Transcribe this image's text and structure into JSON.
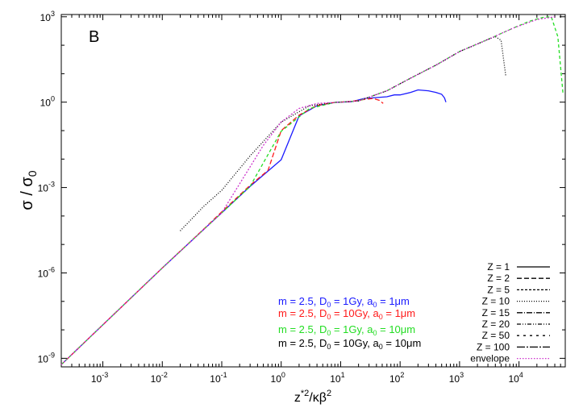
{
  "chart_data": {
    "type": "line",
    "panel_label": "B",
    "xlabel": {
      "base": "z",
      "sup": "*2",
      "tail": "/κβ",
      "tail_sup": "2"
    },
    "ylabel": {
      "sigma": "σ",
      "slash": " / ",
      "sigma0": "σ",
      "sub": "0"
    },
    "x_scale": "log",
    "y_scale": "log",
    "xlim": [
      0.0002,
      60000
    ],
    "ylim": [
      5e-10,
      1200
    ],
    "x_ticks": [
      {
        "base": "10",
        "exp": "-3",
        "value": 0.001
      },
      {
        "base": "10",
        "exp": "-2",
        "value": 0.01
      },
      {
        "base": "10",
        "exp": "-1",
        "value": 0.1
      },
      {
        "base": "10",
        "exp": "0",
        "value": 1
      },
      {
        "base": "10",
        "exp": "1",
        "value": 10
      },
      {
        "base": "10",
        "exp": "2",
        "value": 100
      },
      {
        "base": "10",
        "exp": "3",
        "value": 1000
      },
      {
        "base": "10",
        "exp": "4",
        "value": 10000
      }
    ],
    "y_ticks": [
      {
        "base": "10",
        "exp": "-9",
        "value": 1e-09
      },
      {
        "base": "10",
        "exp": "-6",
        "value": 1e-06
      },
      {
        "base": "10",
        "exp": "-3",
        "value": 0.001
      },
      {
        "base": "10",
        "exp": "0",
        "value": 1
      },
      {
        "base": "10",
        "exp": "3",
        "value": 1000
      }
    ],
    "legend_position": "bottom-right",
    "legend": [
      {
        "label": "Z = 1",
        "style": "solid"
      },
      {
        "label": "Z = 2",
        "style": "dashed"
      },
      {
        "label": "Z = 5",
        "style": "short-dash"
      },
      {
        "label": "Z = 10",
        "style": "dotted"
      },
      {
        "label": "Z = 15",
        "style": "dash-dot"
      },
      {
        "label": "Z = 20",
        "style": "dash-dot-dot"
      },
      {
        "label": "Z = 50",
        "style": "sparse-dash"
      },
      {
        "label": "Z = 100",
        "style": "long-dash-dot"
      },
      {
        "label": "envelope",
        "style": "dotted-magenta"
      }
    ],
    "parameter_sets": [
      {
        "color": "#1a1aff",
        "m": "m = 2.5, D",
        "d_sub": "0",
        "d_val": " = 1Gy, a",
        "a_sub": "0",
        "a_val": " = 1μm"
      },
      {
        "color": "#ff1a1a",
        "m": "m = 2.5, D",
        "d_sub": "0",
        "d_val": " = 10Gy, a",
        "a_sub": "0",
        "a_val": " = 1μm"
      },
      {
        "color": "#22dd22",
        "m": "m = 2.5, D",
        "d_sub": "0",
        "d_val": " = 1Gy, a",
        "a_sub": "0",
        "a_val": " = 10μm"
      },
      {
        "color": "#000000",
        "m": "m = 2.5, D",
        "d_sub": "0",
        "d_val": " = 10Gy, a",
        "a_sub": "0",
        "a_val": " = 10μm"
      }
    ],
    "series": [
      {
        "set": 0,
        "color": "#1a1aff",
        "x": [
          0.0002,
          0.001,
          0.01,
          0.05,
          0.1,
          0.3,
          0.6,
          1,
          2,
          4,
          8,
          15,
          25,
          40,
          60,
          80,
          100,
          150,
          200,
          300,
          400,
          500,
          560,
          590
        ],
        "y": [
          6e-10,
          1.5e-08,
          1.5e-06,
          3.4e-05,
          0.00013,
          0.0011,
          0.0038,
          0.0095,
          0.33,
          0.75,
          0.98,
          1.03,
          1.35,
          1.45,
          1.55,
          1.8,
          1.8,
          2.2,
          2.7,
          2.5,
          2.2,
          1.9,
          1.4,
          1.0
        ]
      },
      {
        "set": 1,
        "color": "#ff1a1a",
        "x": [
          0.0002,
          0.001,
          0.01,
          0.05,
          0.1,
          0.3,
          0.6,
          1,
          2,
          4,
          8,
          15,
          25,
          35,
          45,
          52
        ],
        "y": [
          6e-10,
          1.5e-08,
          1.5e-06,
          3.5e-05,
          0.00014,
          0.0012,
          0.004,
          0.1,
          0.35,
          0.77,
          0.98,
          1.05,
          1.25,
          1.35,
          1.15,
          0.9
        ]
      },
      {
        "set": 2,
        "color": "#22dd22",
        "x": [
          0.0002,
          0.001,
          0.01,
          0.05,
          0.1,
          0.3,
          1,
          3,
          8,
          20,
          60,
          150,
          400,
          1000,
          3000,
          8000,
          15000,
          25000,
          35000,
          45000,
          55000
        ],
        "y": [
          6e-10,
          1.5e-08,
          1.5e-06,
          3.4e-05,
          0.00013,
          0.0011,
          0.095,
          0.6,
          0.98,
          1.1,
          2.5,
          7,
          20,
          60,
          160,
          400,
          700,
          950,
          1000,
          200,
          2
        ]
      },
      {
        "set": 3,
        "color": "#000000",
        "x": [
          0.02,
          0.05,
          0.1,
          0.3,
          1,
          3,
          8,
          20,
          60,
          150,
          400,
          1000,
          2000,
          3000,
          4000,
          5000,
          6000
        ],
        "y": [
          3e-05,
          0.00022,
          0.0008,
          0.013,
          0.2,
          0.75,
          0.98,
          1.1,
          2.5,
          7,
          20,
          60,
          110,
          160,
          200,
          150,
          8
        ]
      },
      {
        "set": 4,
        "color": "#cc33cc",
        "x": [
          0.0002,
          0.001,
          0.01,
          0.1,
          0.5,
          1,
          2,
          4,
          8,
          20,
          60,
          150,
          400,
          1000,
          3000,
          8000,
          20000,
          40000
        ],
        "y": [
          6e-10,
          1.5e-08,
          1.5e-06,
          0.00013,
          0.03,
          0.2,
          0.6,
          0.9,
          0.98,
          1.1,
          2.5,
          7,
          20,
          60,
          160,
          400,
          800,
          1000
        ]
      }
    ]
  }
}
